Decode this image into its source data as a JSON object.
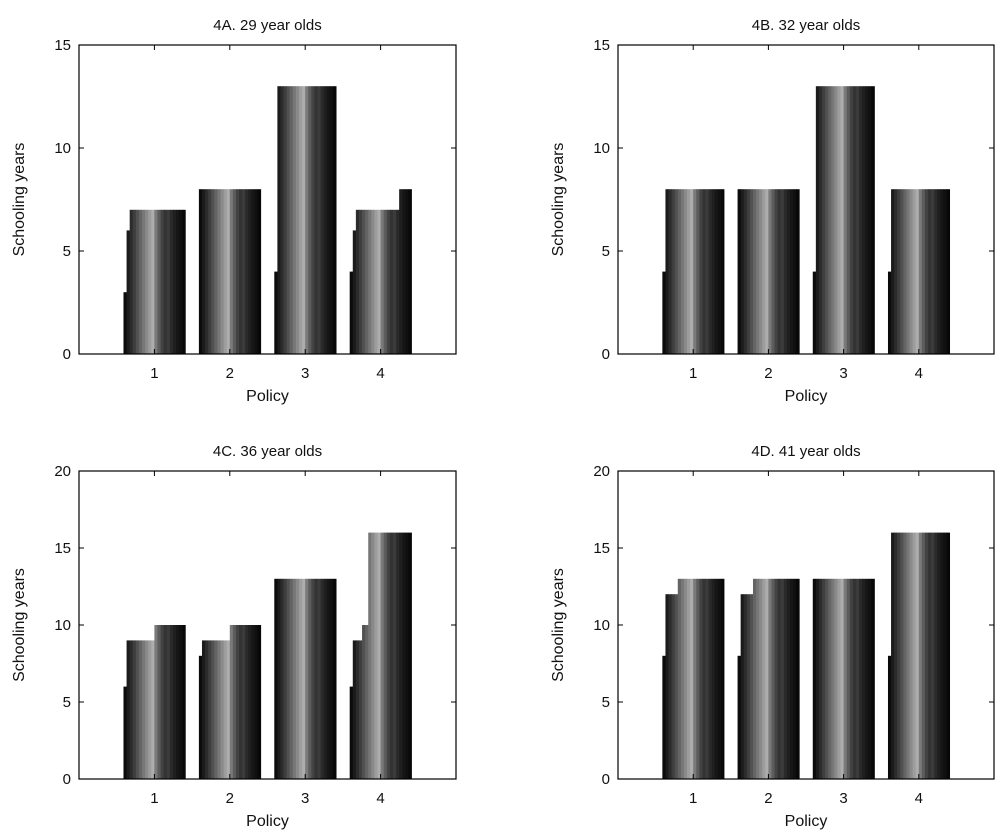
{
  "chart_data": [
    {
      "type": "bar",
      "title": "4A. 29 year olds",
      "xlabel": "Policy",
      "ylabel": "Schooling years",
      "ylim": [
        0,
        15
      ],
      "yticks": [
        0,
        5,
        10,
        15
      ],
      "categories": [
        "1",
        "2",
        "3",
        "4"
      ],
      "bars_per_category": 20,
      "values": [
        [
          3,
          6,
          7,
          7,
          7,
          7,
          7,
          7,
          7,
          7,
          7,
          7,
          7,
          7,
          7,
          7,
          7,
          7,
          7,
          7
        ],
        [
          8,
          8,
          8,
          8,
          8,
          8,
          8,
          8,
          8,
          8,
          8,
          8,
          8,
          8,
          8,
          8,
          8,
          8,
          8,
          8
        ],
        [
          4,
          13,
          13,
          13,
          13,
          13,
          13,
          13,
          13,
          13,
          13,
          13,
          13,
          13,
          13,
          13,
          13,
          13,
          13,
          13
        ],
        [
          4,
          6,
          7,
          7,
          7,
          7,
          7,
          7,
          7,
          7,
          7,
          7,
          7,
          7,
          7,
          7,
          8,
          8,
          8,
          8
        ]
      ],
      "grid": false,
      "legend": "none"
    },
    {
      "type": "bar",
      "title": "4B. 32 year olds",
      "xlabel": "Policy",
      "ylabel": "Schooling years",
      "ylim": [
        0,
        15
      ],
      "yticks": [
        0,
        5,
        10,
        15
      ],
      "categories": [
        "1",
        "2",
        "3",
        "4"
      ],
      "bars_per_category": 20,
      "values": [
        [
          4,
          8,
          8,
          8,
          8,
          8,
          8,
          8,
          8,
          8,
          8,
          8,
          8,
          8,
          8,
          8,
          8,
          8,
          8,
          8
        ],
        [
          8,
          8,
          8,
          8,
          8,
          8,
          8,
          8,
          8,
          8,
          8,
          8,
          8,
          8,
          8,
          8,
          8,
          8,
          8,
          8
        ],
        [
          4,
          13,
          13,
          13,
          13,
          13,
          13,
          13,
          13,
          13,
          13,
          13,
          13,
          13,
          13,
          13,
          13,
          13,
          13,
          13
        ],
        [
          4,
          8,
          8,
          8,
          8,
          8,
          8,
          8,
          8,
          8,
          8,
          8,
          8,
          8,
          8,
          8,
          8,
          8,
          8,
          8
        ]
      ],
      "grid": false,
      "legend": "none"
    },
    {
      "type": "bar",
      "title": "4C. 36 year olds",
      "xlabel": "Policy",
      "ylabel": "Schooling years",
      "ylim": [
        0,
        20
      ],
      "yticks": [
        0,
        5,
        10,
        15,
        20
      ],
      "categories": [
        "1",
        "2",
        "3",
        "4"
      ],
      "bars_per_category": 20,
      "values": [
        [
          6,
          9,
          9,
          9,
          9,
          9,
          9,
          9,
          9,
          9,
          10,
          10,
          10,
          10,
          10,
          10,
          10,
          10,
          10,
          10
        ],
        [
          8,
          9,
          9,
          9,
          9,
          9,
          9,
          9,
          9,
          9,
          10,
          10,
          10,
          10,
          10,
          10,
          10,
          10,
          10,
          10
        ],
        [
          13,
          13,
          13,
          13,
          13,
          13,
          13,
          13,
          13,
          13,
          13,
          13,
          13,
          13,
          13,
          13,
          13,
          13,
          13,
          13
        ],
        [
          6,
          9,
          9,
          9,
          10,
          10,
          16,
          16,
          16,
          16,
          16,
          16,
          16,
          16,
          16,
          16,
          16,
          16,
          16,
          16
        ]
      ],
      "grid": false,
      "legend": "none"
    },
    {
      "type": "bar",
      "title": "4D. 41 year olds",
      "xlabel": "Policy",
      "ylabel": "Schooling years",
      "ylim": [
        0,
        20
      ],
      "yticks": [
        0,
        5,
        10,
        15,
        20
      ],
      "categories": [
        "1",
        "2",
        "3",
        "4"
      ],
      "bars_per_category": 20,
      "values": [
        [
          8,
          12,
          12,
          12,
          12,
          13,
          13,
          13,
          13,
          13,
          13,
          13,
          13,
          13,
          13,
          13,
          13,
          13,
          13,
          13
        ],
        [
          8,
          12,
          12,
          12,
          12,
          13,
          13,
          13,
          13,
          13,
          13,
          13,
          13,
          13,
          13,
          13,
          13,
          13,
          13,
          13
        ],
        [
          13,
          13,
          13,
          13,
          13,
          13,
          13,
          13,
          13,
          13,
          13,
          13,
          13,
          13,
          13,
          13,
          13,
          13,
          13,
          13
        ],
        [
          8,
          16,
          16,
          16,
          16,
          16,
          16,
          16,
          16,
          16,
          16,
          16,
          16,
          16,
          16,
          16,
          16,
          16,
          16,
          16
        ]
      ],
      "grid": false,
      "legend": "none"
    }
  ],
  "colors": {
    "bar_ramp": [
      "#0b0b0b",
      "#1b1b1b",
      "#2c2c2c",
      "#3e3e3e",
      "#515151",
      "#646464",
      "#777777",
      "#8a8a8a",
      "#9d9d9d",
      "#adadad",
      "#7a7a7a",
      "#5c5c5c",
      "#434343",
      "#333333",
      "#3b3b3b",
      "#2a2a2a",
      "#1f1f1f",
      "#161616",
      "#101010",
      "#080808"
    ],
    "axis": "#000000",
    "background": "#ffffff"
  }
}
